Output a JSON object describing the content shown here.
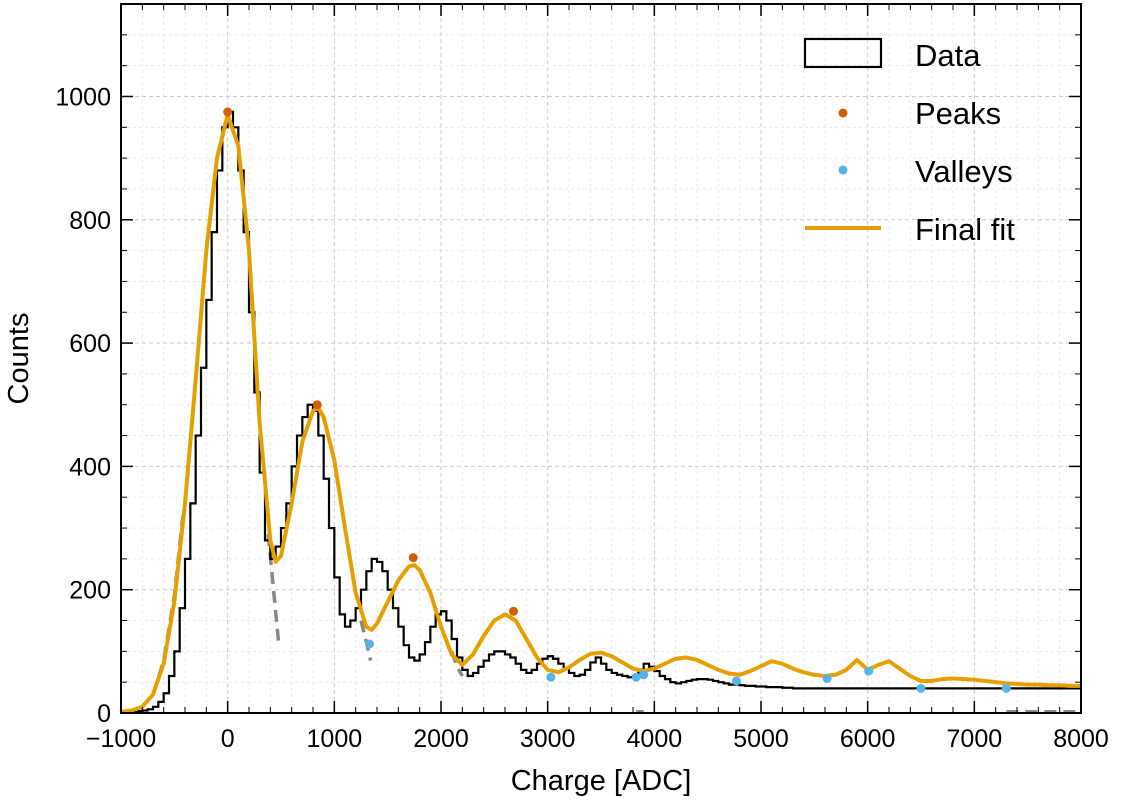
{
  "chart_data": {
    "type": "histogram",
    "title": "",
    "xlabel": "Charge [ADC]",
    "ylabel": "Counts",
    "xlim": [
      -1000,
      8000
    ],
    "ylim": [
      0,
      1150
    ],
    "xticks": [
      -1000,
      0,
      1000,
      2000,
      3000,
      4000,
      5000,
      6000,
      7000,
      8000
    ],
    "xtick_labels": [
      "−1000",
      "0",
      "1000",
      "2000",
      "3000",
      "4000",
      "5000",
      "6000",
      "7000",
      "8000"
    ],
    "yticks": [
      0,
      200,
      400,
      600,
      800,
      1000
    ],
    "ytick_labels": [
      "0",
      "200",
      "400",
      "600",
      "800",
      "1000"
    ],
    "grid": true,
    "legend_position": "top-right",
    "legend": [
      {
        "label": "Data",
        "kind": "box"
      },
      {
        "label": "Peaks",
        "kind": "marker"
      },
      {
        "label": "Valleys",
        "kind": "marker"
      },
      {
        "label": "Final fit",
        "kind": "line"
      }
    ],
    "histogram": {
      "name": "Data",
      "bin_start": -1000,
      "bin_width": 50,
      "counts": [
        2,
        2,
        2,
        3,
        4,
        6,
        10,
        18,
        32,
        60,
        100,
        170,
        250,
        340,
        450,
        560,
        670,
        780,
        880,
        950,
        975,
        950,
        880,
        780,
        650,
        520,
        390,
        280,
        250,
        270,
        300,
        340,
        400,
        450,
        480,
        500,
        490,
        450,
        380,
        300,
        220,
        160,
        140,
        150,
        170,
        200,
        230,
        250,
        245,
        230,
        200,
        170,
        140,
        110,
        90,
        85,
        95,
        115,
        140,
        160,
        165,
        150,
        120,
        90,
        70,
        60,
        65,
        75,
        85,
        95,
        100,
        100,
        95,
        90,
        80,
        70,
        65,
        70,
        80,
        88,
        92,
        88,
        80,
        72,
        65,
        60,
        62,
        70,
        82,
        90,
        80,
        70,
        65,
        62,
        60,
        58,
        60,
        68,
        80,
        75,
        68,
        60,
        55,
        50,
        48,
        50,
        52,
        54,
        55,
        55,
        54,
        52,
        50,
        48,
        46,
        46,
        45,
        44,
        44,
        43,
        43,
        42,
        42,
        42,
        41,
        41,
        40,
        40,
        40,
        40,
        40,
        40,
        40,
        40,
        40,
        40,
        40,
        40,
        40,
        40,
        40,
        40,
        40,
        40,
        40,
        40,
        40,
        40,
        40,
        40,
        40,
        40,
        40,
        40,
        40,
        40,
        40,
        40,
        40,
        40,
        40,
        40,
        40,
        40,
        40,
        40,
        40,
        40,
        40,
        40,
        40,
        40,
        40,
        40,
        40,
        40,
        40,
        40,
        40,
        40,
        40,
        40,
        40,
        40,
        40,
        40,
        40
      ]
    },
    "peaks": {
      "name": "Peaks",
      "color": "#d55e00",
      "points": [
        [
          0,
          975
        ],
        [
          840,
          500
        ],
        [
          1740,
          252
        ],
        [
          2680,
          165
        ]
      ]
    },
    "valleys": {
      "name": "Valleys",
      "color": "#56b4e9",
      "points": [
        [
          1330,
          112
        ],
        [
          3030,
          58
        ],
        [
          3830,
          58
        ],
        [
          3900,
          62
        ],
        [
          4770,
          52
        ],
        [
          5620,
          56
        ],
        [
          6010,
          68
        ],
        [
          6500,
          40
        ],
        [
          7300,
          40
        ]
      ]
    },
    "final_fit": {
      "name": "Final fit",
      "color": "#e69f00",
      "points": [
        [
          -1000,
          2
        ],
        [
          -900,
          4
        ],
        [
          -800,
          10
        ],
        [
          -700,
          30
        ],
        [
          -600,
          80
        ],
        [
          -500,
          180
        ],
        [
          -400,
          340
        ],
        [
          -300,
          540
        ],
        [
          -200,
          750
        ],
        [
          -100,
          900
        ],
        [
          0,
          970
        ],
        [
          100,
          920
        ],
        [
          200,
          750
        ],
        [
          300,
          470
        ],
        [
          400,
          280
        ],
        [
          450,
          245
        ],
        [
          500,
          255
        ],
        [
          600,
          340
        ],
        [
          700,
          440
        ],
        [
          800,
          490
        ],
        [
          850,
          495
        ],
        [
          900,
          480
        ],
        [
          1000,
          410
        ],
        [
          1100,
          300
        ],
        [
          1200,
          195
        ],
        [
          1300,
          140
        ],
        [
          1350,
          135
        ],
        [
          1400,
          145
        ],
        [
          1500,
          180
        ],
        [
          1600,
          215
        ],
        [
          1700,
          238
        ],
        [
          1750,
          240
        ],
        [
          1800,
          232
        ],
        [
          1900,
          195
        ],
        [
          2000,
          140
        ],
        [
          2100,
          95
        ],
        [
          2200,
          78
        ],
        [
          2300,
          95
        ],
        [
          2400,
          125
        ],
        [
          2500,
          150
        ],
        [
          2600,
          160
        ],
        [
          2700,
          150
        ],
        [
          2800,
          120
        ],
        [
          2900,
          90
        ],
        [
          3000,
          70
        ],
        [
          3100,
          66
        ],
        [
          3200,
          74
        ],
        [
          3300,
          86
        ],
        [
          3400,
          96
        ],
        [
          3500,
          98
        ],
        [
          3600,
          92
        ],
        [
          3700,
          82
        ],
        [
          3800,
          72
        ],
        [
          3900,
          68
        ],
        [
          4000,
          72
        ],
        [
          4100,
          80
        ],
        [
          4200,
          88
        ],
        [
          4300,
          90
        ],
        [
          4400,
          86
        ],
        [
          4500,
          78
        ],
        [
          4600,
          70
        ],
        [
          4700,
          64
        ],
        [
          4800,
          62
        ],
        [
          4900,
          68
        ],
        [
          5000,
          76
        ],
        [
          5100,
          84
        ],
        [
          5200,
          80
        ],
        [
          5300,
          72
        ],
        [
          5400,
          66
        ],
        [
          5500,
          62
        ],
        [
          5600,
          60
        ],
        [
          5700,
          62
        ],
        [
          5800,
          70
        ],
        [
          5900,
          86
        ],
        [
          6000,
          70
        ],
        [
          6100,
          78
        ],
        [
          6200,
          84
        ],
        [
          6300,
          72
        ],
        [
          6400,
          60
        ],
        [
          6500,
          52
        ],
        [
          6600,
          52
        ],
        [
          6700,
          55
        ],
        [
          6800,
          56
        ],
        [
          6900,
          55
        ],
        [
          7000,
          54
        ],
        [
          7100,
          52
        ],
        [
          7200,
          50
        ],
        [
          7300,
          48
        ],
        [
          7400,
          47
        ],
        [
          7500,
          46
        ],
        [
          7600,
          46
        ],
        [
          7700,
          45
        ],
        [
          7800,
          45
        ],
        [
          7900,
          44
        ],
        [
          8000,
          44
        ]
      ]
    },
    "component_fits": {
      "color": "#888888",
      "segments": [
        [
          [
            -700,
            30
          ],
          [
            -600,
            85
          ],
          [
            -500,
            190
          ],
          [
            -420,
            320
          ]
        ],
        [
          [
            380,
            290
          ],
          [
            430,
            200
          ],
          [
            480,
            110
          ]
        ],
        [
          [
            1250,
            150
          ],
          [
            1300,
            115
          ],
          [
            1340,
            85
          ]
        ],
        [
          [
            2100,
            100
          ],
          [
            2150,
            75
          ],
          [
            2200,
            60
          ]
        ],
        [
          [
            3830,
            2
          ],
          [
            3900,
            2
          ]
        ],
        [
          [
            7300,
            2
          ],
          [
            8000,
            2
          ]
        ]
      ]
    }
  }
}
